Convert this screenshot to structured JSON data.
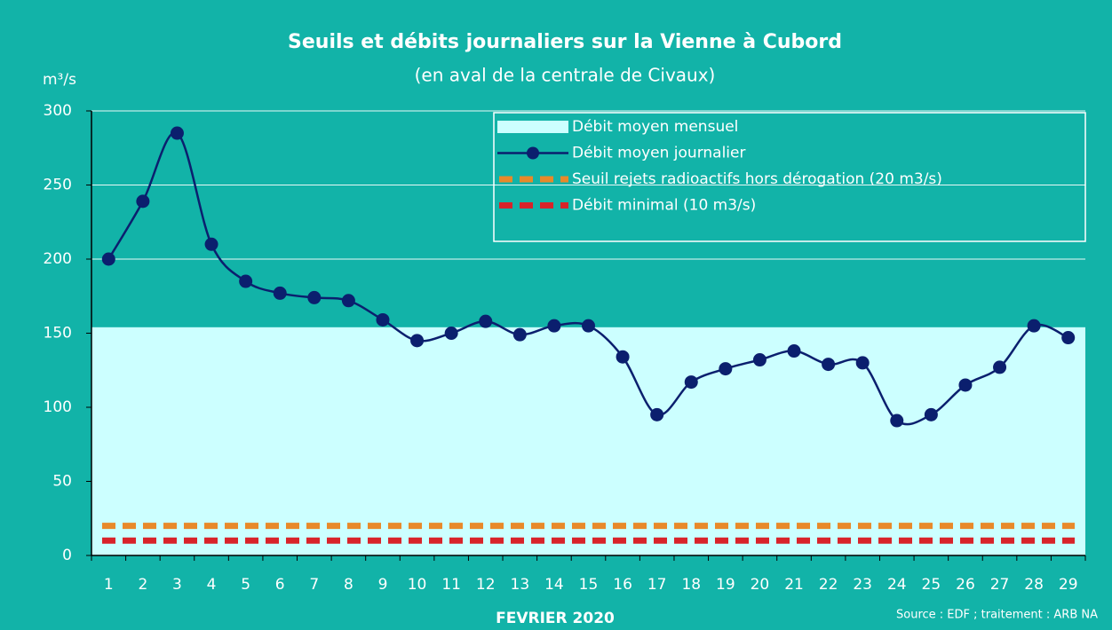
{
  "chart_data": {
    "type": "line",
    "title": "Seuils et débits journaliers sur la Vienne à Cubord",
    "subtitle": "(en aval de la centrale de Civaux)",
    "y_label": "m³/s",
    "x_label": "FEVRIER 2020",
    "source": "Source : EDF ; traitement : ARB NA",
    "categories": [
      1,
      2,
      3,
      4,
      5,
      6,
      7,
      8,
      9,
      10,
      11,
      12,
      13,
      14,
      15,
      16,
      17,
      18,
      19,
      20,
      21,
      22,
      23,
      24,
      25,
      26,
      27,
      28,
      29
    ],
    "series": [
      {
        "name": "Débit moyen mensuel",
        "kind": "area",
        "color": "#ccffff",
        "value": 154
      },
      {
        "name": "Débit moyen journalier",
        "kind": "line",
        "color": "#0b1f6e",
        "values": [
          200,
          239,
          285,
          210,
          185,
          177,
          174,
          172,
          159,
          145,
          150,
          158,
          149,
          155,
          155,
          134,
          95,
          117,
          126,
          132,
          138,
          129,
          130,
          91,
          95,
          115,
          127,
          155,
          147
        ]
      },
      {
        "name": "Seuil rejets radioactifs hors dérogation (20 m3/s)",
        "kind": "dashed",
        "color": "#e8892a",
        "value": 20
      },
      {
        "name": "Débit minimal (10 m3/s)",
        "kind": "dashed",
        "color": "#d8232a",
        "value": 10
      }
    ],
    "ylim": [
      0,
      300
    ],
    "yticks": [
      0,
      50,
      100,
      150,
      200,
      250,
      300
    ],
    "grid": true,
    "legend": "top-right"
  }
}
